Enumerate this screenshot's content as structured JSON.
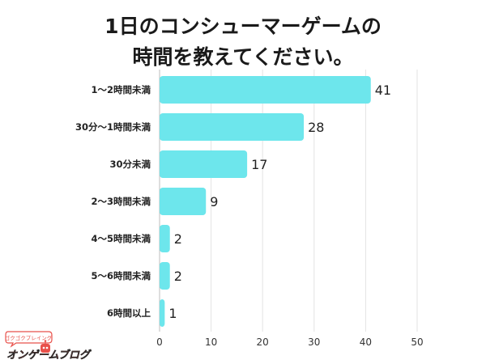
{
  "title_lines": [
    "1日のコンシューマーゲームの",
    "時間を教えてください。"
  ],
  "logo": {
    "top_text": "ゴクゴクプレイング",
    "main_text": "オンゲームブログ",
    "colors": [
      "#e8504a",
      "#2b2b2b"
    ]
  },
  "chart_data": {
    "type": "bar",
    "orientation": "horizontal",
    "categories": [
      "1〜2時間未満",
      "30分〜1時間未満",
      "30分未満",
      "2〜3時間未満",
      "4〜5時間未満",
      "5〜6時間未満",
      "6時間以上"
    ],
    "values": [
      41,
      28,
      17,
      9,
      2,
      2,
      1
    ],
    "xlim": [
      0,
      50
    ],
    "xticks": [
      0,
      10,
      20,
      30,
      40,
      50
    ],
    "grid": true,
    "legend": "none",
    "bar_color": "#6de6ec",
    "data_labels": true
  }
}
